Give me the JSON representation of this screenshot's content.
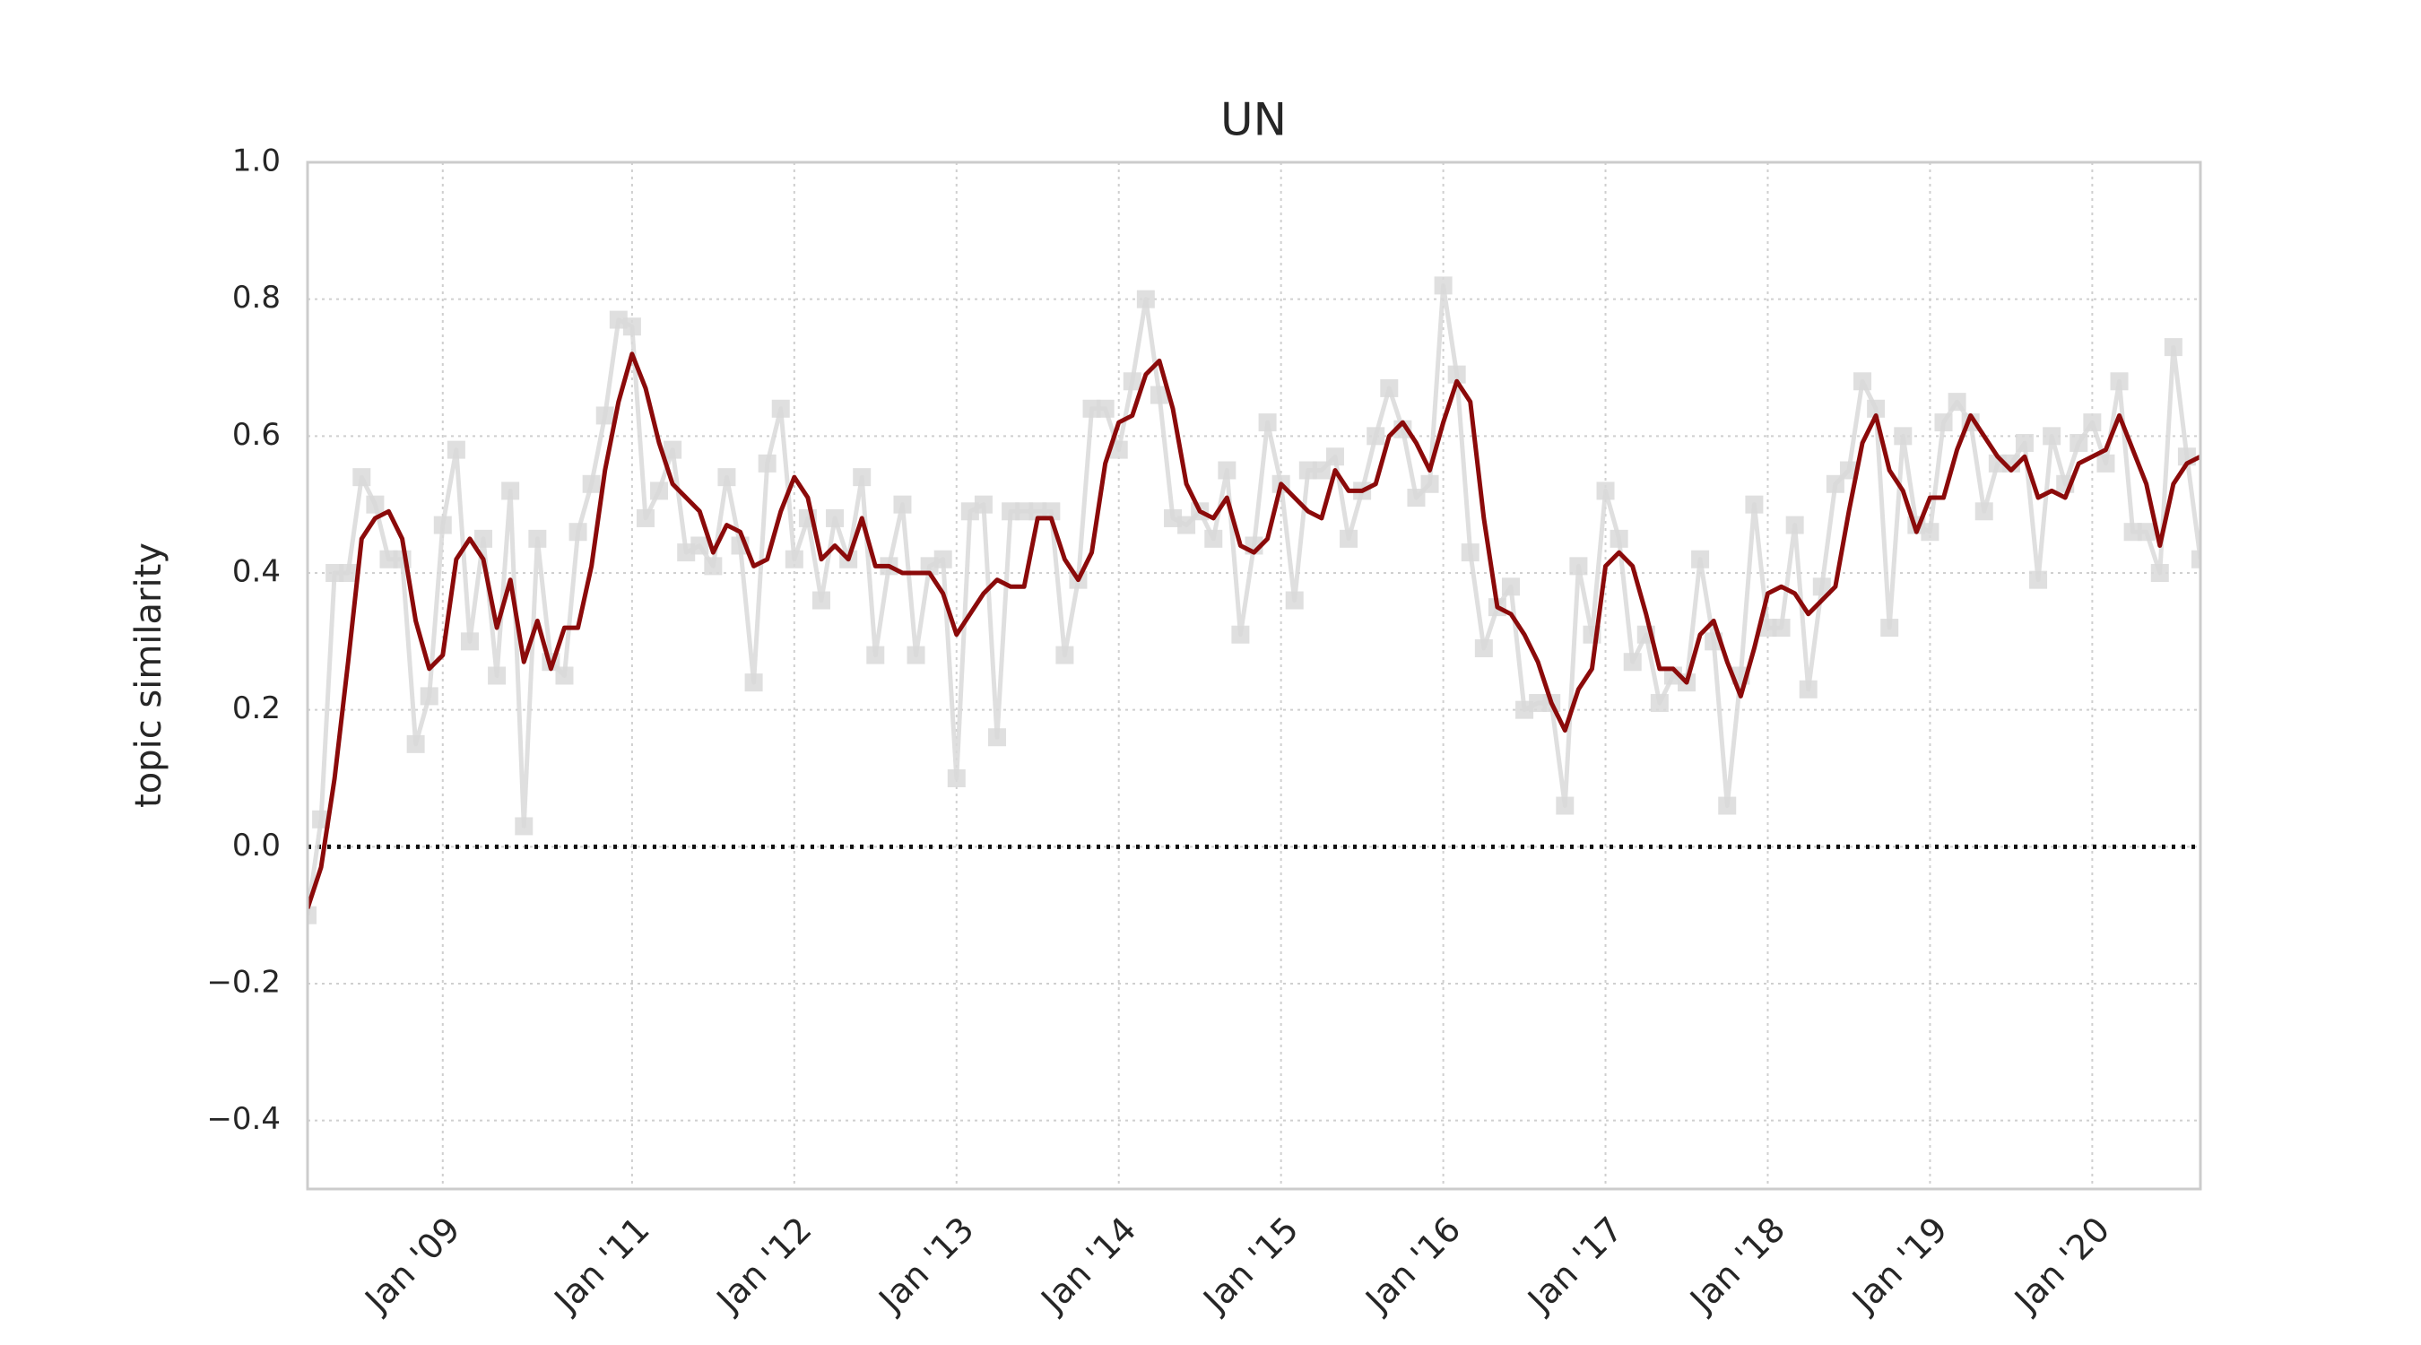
{
  "chart_data": {
    "type": "line",
    "title": "UN",
    "y_label": "topic similarity",
    "categories": [
      null,
      null,
      null,
      null,
      null,
      null,
      null,
      null,
      null,
      null,
      "Jan '09",
      null,
      null,
      null,
      null,
      null,
      null,
      null,
      null,
      null,
      null,
      null,
      null,
      null,
      "Jan '11",
      null,
      null,
      null,
      null,
      null,
      null,
      null,
      null,
      null,
      null,
      null,
      "Jan '12",
      null,
      null,
      null,
      null,
      null,
      null,
      null,
      null,
      null,
      null,
      null,
      "Jan '13",
      null,
      null,
      null,
      null,
      null,
      null,
      null,
      null,
      null,
      null,
      null,
      "Jan '14",
      null,
      null,
      null,
      null,
      null,
      null,
      null,
      null,
      null,
      null,
      null,
      "Jan '15",
      null,
      null,
      null,
      null,
      null,
      null,
      null,
      null,
      null,
      null,
      null,
      "Jan '16",
      null,
      null,
      null,
      null,
      null,
      null,
      null,
      null,
      null,
      null,
      null,
      "Jan '17",
      null,
      null,
      null,
      null,
      null,
      null,
      null,
      null,
      null,
      null,
      null,
      "Jan '18",
      null,
      null,
      null,
      null,
      null,
      null,
      null,
      null,
      null,
      null,
      null,
      "Jan '19",
      null,
      null,
      null,
      null,
      null,
      null,
      null,
      null,
      null,
      null,
      null,
      "Jan '20",
      null,
      null,
      null,
      null,
      null,
      null,
      null,
      null
    ],
    "series": [
      {
        "color": "#d9d9d9",
        "marker": "square",
        "values": [
          -0.1,
          0.04,
          0.4,
          0.4,
          0.54,
          0.5,
          0.42,
          0.42,
          0.15,
          0.22,
          0.47,
          0.58,
          0.3,
          0.45,
          0.25,
          0.52,
          0.03,
          0.45,
          0.27,
          0.25,
          0.46,
          0.53,
          0.63,
          0.77,
          0.76,
          0.48,
          0.52,
          0.58,
          0.43,
          0.44,
          0.41,
          0.54,
          0.44,
          0.24,
          0.56,
          0.64,
          0.42,
          0.48,
          0.36,
          0.48,
          0.42,
          0.54,
          0.28,
          0.41,
          0.5,
          0.28,
          0.41,
          0.42,
          0.1,
          0.49,
          0.5,
          0.16,
          0.49,
          0.49,
          0.49,
          0.49,
          0.28,
          0.39,
          0.64,
          0.64,
          0.58,
          0.68,
          0.8,
          0.66,
          0.48,
          0.47,
          0.49,
          0.45,
          0.55,
          0.31,
          0.44,
          0.62,
          0.53,
          0.36,
          0.55,
          0.55,
          0.57,
          0.45,
          0.52,
          0.6,
          0.67,
          0.61,
          0.51,
          0.53,
          0.82,
          0.69,
          0.43,
          0.29,
          0.35,
          0.38,
          0.2,
          0.21,
          0.21,
          0.06,
          0.41,
          0.31,
          0.52,
          0.45,
          0.27,
          0.31,
          0.21,
          0.25,
          0.24,
          0.42,
          0.3,
          0.06,
          0.25,
          0.5,
          0.32,
          0.32,
          0.47,
          0.23,
          0.38,
          0.53,
          0.55,
          0.68,
          0.64,
          0.32,
          0.6,
          0.47,
          0.46,
          0.62,
          0.65,
          0.62,
          0.49,
          0.56,
          0.56,
          0.59,
          0.39,
          0.6,
          0.53,
          0.59,
          0.62,
          0.56,
          0.68,
          0.46,
          0.46,
          0.4,
          0.73,
          0.57,
          0.42
        ]
      },
      {
        "color": "#8b0a0a",
        "values": [
          -0.09,
          -0.03,
          0.1,
          0.27,
          0.45,
          0.48,
          0.49,
          0.45,
          0.33,
          0.26,
          0.28,
          0.42,
          0.45,
          0.42,
          0.32,
          0.39,
          0.27,
          0.33,
          0.26,
          0.32,
          0.32,
          0.41,
          0.55,
          0.65,
          0.72,
          0.67,
          0.59,
          0.53,
          0.51,
          0.49,
          0.43,
          0.47,
          0.46,
          0.41,
          0.42,
          0.49,
          0.54,
          0.51,
          0.42,
          0.44,
          0.42,
          0.48,
          0.41,
          0.41,
          0.4,
          0.4,
          0.4,
          0.37,
          0.31,
          0.34,
          0.37,
          0.39,
          0.38,
          0.38,
          0.48,
          0.48,
          0.42,
          0.39,
          0.43,
          0.56,
          0.62,
          0.63,
          0.69,
          0.71,
          0.64,
          0.53,
          0.49,
          0.48,
          0.51,
          0.44,
          0.43,
          0.45,
          0.53,
          0.51,
          0.49,
          0.48,
          0.55,
          0.52,
          0.52,
          0.53,
          0.6,
          0.62,
          0.59,
          0.55,
          0.62,
          0.68,
          0.65,
          0.48,
          0.35,
          0.34,
          0.31,
          0.27,
          0.21,
          0.17,
          0.23,
          0.26,
          0.41,
          0.43,
          0.41,
          0.34,
          0.26,
          0.26,
          0.24,
          0.31,
          0.33,
          0.27,
          0.22,
          0.29,
          0.37,
          0.38,
          0.37,
          0.34,
          0.36,
          0.38,
          0.49,
          0.59,
          0.63,
          0.55,
          0.52,
          0.46,
          0.51,
          0.51,
          0.58,
          0.63,
          0.6,
          0.57,
          0.55,
          0.57,
          0.51,
          0.52,
          0.51,
          0.56,
          0.57,
          0.58,
          0.63,
          0.58,
          0.53,
          0.44,
          0.53,
          0.56,
          0.57
        ]
      }
    ],
    "ylim": [
      -0.5,
      1.0
    ],
    "yticks": [
      {
        "value": -0.4,
        "label": "−0.4"
      },
      {
        "value": -0.2,
        "label": "−0.2"
      },
      {
        "value": 0,
        "label": "0.0"
      },
      0.2,
      0.4,
      0.6,
      0.8,
      {
        "value": 1,
        "label": "1.0"
      }
    ],
    "hlines": [
      0
    ],
    "grid": true
  }
}
